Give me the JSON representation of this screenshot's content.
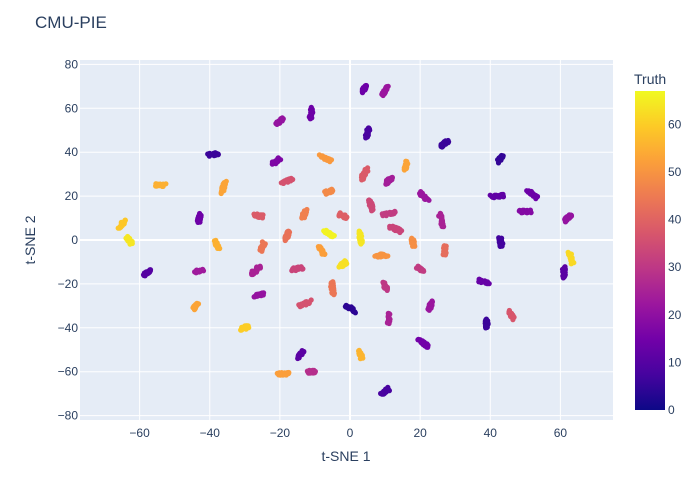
{
  "chart_data": {
    "type": "scatter",
    "title": "CMU-PIE",
    "xlabel": "t-SNE 1",
    "ylabel": "t-SNE 2",
    "xlim": [
      -77,
      75
    ],
    "ylim": [
      -82,
      82
    ],
    "xticks": [
      -60,
      -40,
      -20,
      0,
      20,
      40,
      60
    ],
    "yticks": [
      -80,
      -60,
      -40,
      -20,
      0,
      20,
      40,
      60,
      80
    ],
    "grid": true,
    "colorbar": {
      "title": "Truth",
      "range": [
        0,
        67
      ],
      "ticks": [
        0,
        10,
        20,
        30,
        40,
        50,
        60
      ],
      "colorscale": "plasma"
    },
    "clusters": [
      {
        "x": 4,
        "y": 69,
        "truth": 14
      },
      {
        "x": 10,
        "y": 68,
        "truth": 22
      },
      {
        "x": -11,
        "y": 58,
        "truth": 14
      },
      {
        "x": -20,
        "y": 54,
        "truth": 21
      },
      {
        "x": 5,
        "y": 49,
        "truth": 8
      },
      {
        "x": 27,
        "y": 44,
        "truth": 6
      },
      {
        "x": -39,
        "y": 39,
        "truth": 6
      },
      {
        "x": 43,
        "y": 37,
        "truth": 5
      },
      {
        "x": -21,
        "y": 36,
        "truth": 17
      },
      {
        "x": -7,
        "y": 37,
        "truth": 51
      },
      {
        "x": 16,
        "y": 34,
        "truth": 53
      },
      {
        "x": 4,
        "y": 30,
        "truth": 38
      },
      {
        "x": -18,
        "y": 27,
        "truth": 36
      },
      {
        "x": 11,
        "y": 27,
        "truth": 24
      },
      {
        "x": -54,
        "y": 25,
        "truth": 55
      },
      {
        "x": -36,
        "y": 24,
        "truth": 53
      },
      {
        "x": -6,
        "y": 22,
        "truth": 48
      },
      {
        "x": 21,
        "y": 20,
        "truth": 22
      },
      {
        "x": 42,
        "y": 20,
        "truth": 12
      },
      {
        "x": 52,
        "y": 21,
        "truth": 14
      },
      {
        "x": 6,
        "y": 16,
        "truth": 34
      },
      {
        "x": 50,
        "y": 13,
        "truth": 18
      },
      {
        "x": -43,
        "y": 10,
        "truth": 14
      },
      {
        "x": -26,
        "y": 11,
        "truth": 38
      },
      {
        "x": -13,
        "y": 12,
        "truth": 46
      },
      {
        "x": -2,
        "y": 11,
        "truth": 39
      },
      {
        "x": 11,
        "y": 12,
        "truth": 31
      },
      {
        "x": 26,
        "y": 9,
        "truth": 25
      },
      {
        "x": 62,
        "y": 10,
        "truth": 21
      },
      {
        "x": -65,
        "y": 7,
        "truth": 59
      },
      {
        "x": -6,
        "y": 3,
        "truth": 66
      },
      {
        "x": 13,
        "y": 5,
        "truth": 33
      },
      {
        "x": -18,
        "y": 2,
        "truth": 43
      },
      {
        "x": 3,
        "y": 1,
        "truth": 64
      },
      {
        "x": -63,
        "y": 0,
        "truth": 64
      },
      {
        "x": -38,
        "y": -2,
        "truth": 55
      },
      {
        "x": -25,
        "y": -3,
        "truth": 44
      },
      {
        "x": 18,
        "y": -1,
        "truth": 49
      },
      {
        "x": 43,
        "y": -1,
        "truth": 7
      },
      {
        "x": -8,
        "y": -5,
        "truth": 52
      },
      {
        "x": 27,
        "y": -5,
        "truth": 42
      },
      {
        "x": 9,
        "y": -7,
        "truth": 50
      },
      {
        "x": 63,
        "y": -8,
        "truth": 62
      },
      {
        "x": -2,
        "y": -11,
        "truth": 63
      },
      {
        "x": -43,
        "y": -14,
        "truth": 23
      },
      {
        "x": -27,
        "y": -14,
        "truth": 25
      },
      {
        "x": -15,
        "y": -13,
        "truth": 33
      },
      {
        "x": 20,
        "y": -13,
        "truth": 31
      },
      {
        "x": -58,
        "y": -15,
        "truth": 10
      },
      {
        "x": 61,
        "y": -15,
        "truth": 11
      },
      {
        "x": 38,
        "y": -19,
        "truth": 13
      },
      {
        "x": -5,
        "y": -22,
        "truth": 44
      },
      {
        "x": 10,
        "y": -21,
        "truth": 30
      },
      {
        "x": -26,
        "y": -25,
        "truth": 21
      },
      {
        "x": -13,
        "y": -29,
        "truth": 36
      },
      {
        "x": 0,
        "y": -31,
        "truth": 4
      },
      {
        "x": 23,
        "y": -30,
        "truth": 22
      },
      {
        "x": -44,
        "y": -30,
        "truth": 53
      },
      {
        "x": 46,
        "y": -34,
        "truth": 37
      },
      {
        "x": 11,
        "y": -36,
        "truth": 25
      },
      {
        "x": 39,
        "y": -38,
        "truth": 6
      },
      {
        "x": -30,
        "y": -40,
        "truth": 60
      },
      {
        "x": 21,
        "y": -47,
        "truth": 15
      },
      {
        "x": -14,
        "y": -52,
        "truth": 11
      },
      {
        "x": 3,
        "y": -52,
        "truth": 56
      },
      {
        "x": -11,
        "y": -60,
        "truth": 28
      },
      {
        "x": -19,
        "y": -61,
        "truth": 52
      },
      {
        "x": 10,
        "y": -69,
        "truth": 8
      }
    ]
  }
}
